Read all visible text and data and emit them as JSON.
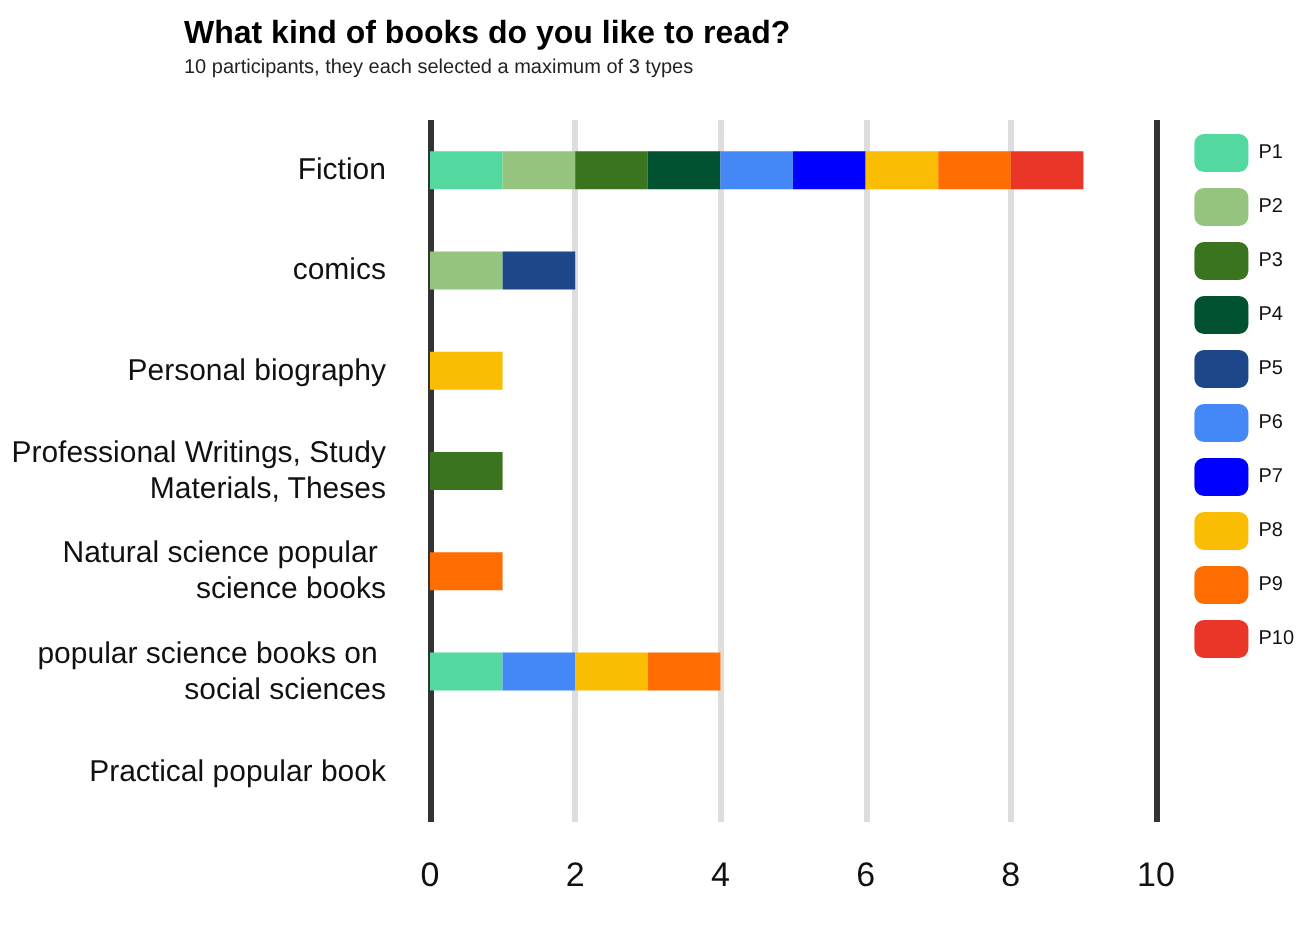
{
  "chart_data": {
    "type": "bar",
    "orientation": "horizontal",
    "stacked": true,
    "title": "What kind of books do you like to read?",
    "subtitle": "10 participants, they each selected a maximum of 3 types",
    "categories": [
      "Fiction",
      "comics",
      "Personal biography",
      "Professional Writings, Study Materials, Theses",
      "Natural science popular science books",
      "popular science books on social sciences",
      "Practical popular book"
    ],
    "series": [
      {
        "name": "P1",
        "color": "#53d9a0",
        "values": [
          1,
          null,
          null,
          null,
          null,
          1,
          null
        ]
      },
      {
        "name": "P2",
        "color": "#95c47f",
        "values": [
          1,
          1,
          null,
          null,
          null,
          null,
          null
        ]
      },
      {
        "name": "P3",
        "color": "#3a741e",
        "values": [
          1,
          null,
          null,
          1,
          null,
          null,
          null
        ]
      },
      {
        "name": "P4",
        "color": "#005230",
        "values": [
          1,
          null,
          null,
          null,
          null,
          null,
          null
        ]
      },
      {
        "name": "P5",
        "color": "#1e478a",
        "values": [
          null,
          1,
          null,
          null,
          null,
          null,
          null
        ]
      },
      {
        "name": "P6",
        "color": "#4388f6",
        "values": [
          1,
          null,
          null,
          null,
          null,
          1,
          null
        ]
      },
      {
        "name": "P7",
        "color": "#0000fe",
        "values": [
          1,
          null,
          null,
          null,
          null,
          null,
          null
        ]
      },
      {
        "name": "P8",
        "color": "#fbbd03",
        "values": [
          1,
          null,
          1,
          null,
          null,
          1,
          null
        ]
      },
      {
        "name": "P9",
        "color": "#ff6d01",
        "values": [
          1,
          null,
          null,
          null,
          1,
          1,
          null
        ]
      },
      {
        "name": "P10",
        "color": "#ea3629",
        "values": [
          1,
          null,
          null,
          null,
          null,
          null,
          null
        ]
      }
    ],
    "xlim": [
      0,
      10
    ],
    "xticks": [
      0,
      2,
      4,
      6,
      8,
      10
    ],
    "grid": "x",
    "legend": "right"
  }
}
